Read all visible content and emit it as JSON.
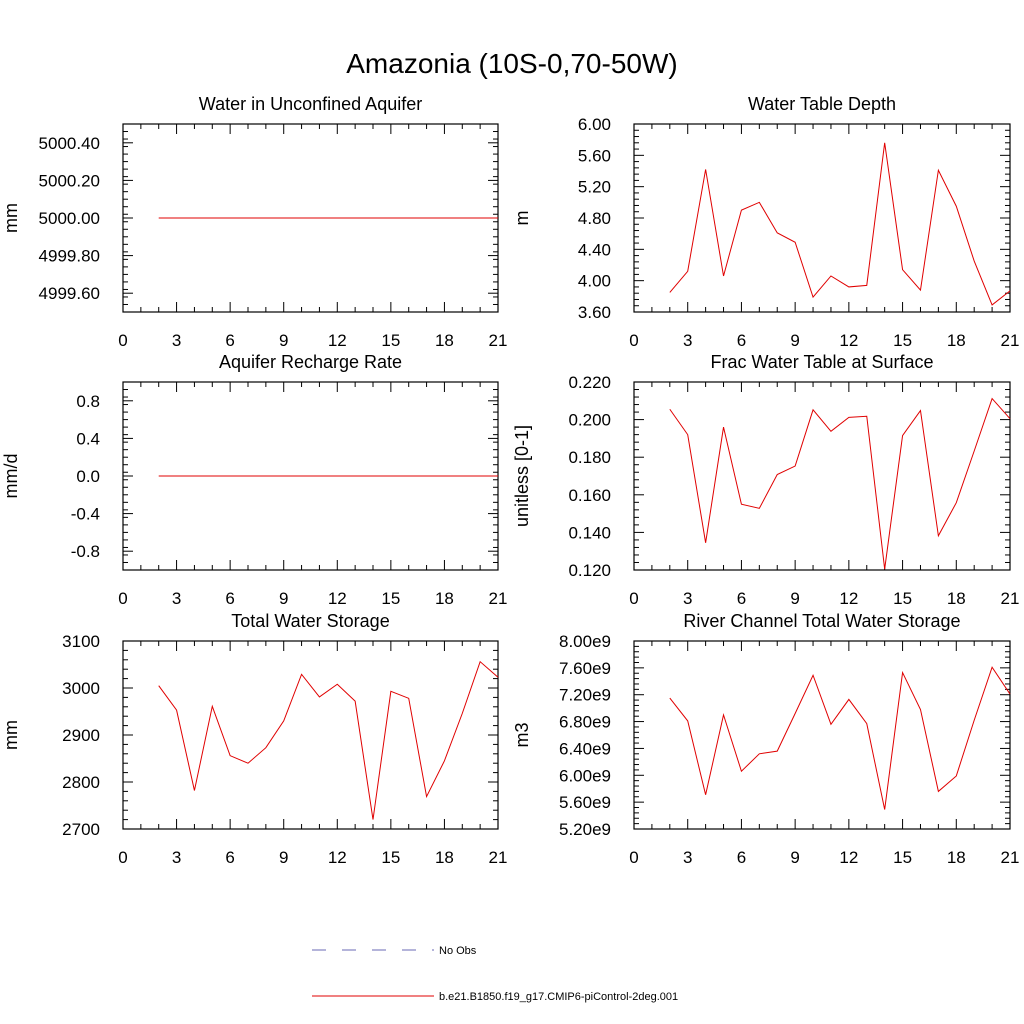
{
  "figure": {
    "title": "Amazonia (10S-0,70-50W)"
  },
  "legend": {
    "entries": [
      {
        "label": "No Obs",
        "style": "dashed",
        "color": "#6a6ab5"
      },
      {
        "label": "b.e21.B1850.f19_g17.CMIP6-piControl-2deg.001",
        "style": "solid",
        "color": "#e00000"
      }
    ]
  },
  "chart_data": [
    {
      "type": "line",
      "title": "Water in Unconfined Aquifer",
      "xlabel": "",
      "ylabel": "mm",
      "xlim": [
        0,
        21
      ],
      "xticks": [
        0,
        3,
        6,
        9,
        12,
        15,
        18,
        21
      ],
      "ylim": [
        4999.5,
        5000.5
      ],
      "yticks": [
        4999.6,
        4999.8,
        5000.0,
        5000.2,
        5000.4
      ],
      "ytick_labels": [
        "4999.60",
        "4999.80",
        "5000.00",
        "5000.20",
        "5000.40"
      ],
      "yminor": 0.04,
      "series": [
        {
          "name": "b.e21.B1850.f19_g17.CMIP6-piControl-2deg.001",
          "color": "#e00000",
          "x": [
            2,
            3,
            4,
            5,
            6,
            7,
            8,
            9,
            10,
            11,
            12,
            13,
            14,
            15,
            16,
            17,
            18,
            19,
            20,
            21
          ],
          "values": [
            5000,
            5000,
            5000,
            5000,
            5000,
            5000,
            5000,
            5000,
            5000,
            5000,
            5000,
            5000,
            5000,
            5000,
            5000,
            5000,
            5000,
            5000,
            5000,
            5000
          ]
        }
      ]
    },
    {
      "type": "line",
      "title": "Water Table Depth",
      "xlabel": "",
      "ylabel": "m",
      "xlim": [
        0,
        21
      ],
      "xticks": [
        0,
        3,
        6,
        9,
        12,
        15,
        18,
        21
      ],
      "ylim": [
        3.6,
        6.0
      ],
      "yticks": [
        3.6,
        4.0,
        4.4,
        4.8,
        5.2,
        5.6,
        6.0
      ],
      "ytick_labels": [
        "3.60",
        "4.00",
        "4.40",
        "4.80",
        "5.20",
        "5.60",
        "6.00"
      ],
      "yminor": 0.08,
      "series": [
        {
          "name": "b.e21.B1850.f19_g17.CMIP6-piControl-2deg.001",
          "color": "#e00000",
          "x": [
            2,
            3,
            4,
            5,
            6,
            7,
            8,
            9,
            10,
            11,
            12,
            13,
            14,
            15,
            16,
            17,
            18,
            19,
            20,
            21
          ],
          "values": [
            3.85,
            4.12,
            5.42,
            4.06,
            4.9,
            5.0,
            4.61,
            4.49,
            3.79,
            4.06,
            3.92,
            3.94,
            5.76,
            4.14,
            3.88,
            5.41,
            4.95,
            4.25,
            3.69,
            3.87
          ]
        }
      ]
    },
    {
      "type": "line",
      "title": "Aquifer Recharge Rate",
      "xlabel": "",
      "ylabel": "mm/d",
      "xlim": [
        0,
        21
      ],
      "xticks": [
        0,
        3,
        6,
        9,
        12,
        15,
        18,
        21
      ],
      "ylim": [
        -1.0,
        1.0
      ],
      "yticks": [
        -0.8,
        -0.4,
        0.0,
        0.4,
        0.8
      ],
      "ytick_labels": [
        "-0.8",
        "-0.4",
        "0.0",
        "0.4",
        "0.8"
      ],
      "yminor": 0.08,
      "series": [
        {
          "name": "b.e21.B1850.f19_g17.CMIP6-piControl-2deg.001",
          "color": "#e00000",
          "x": [
            2,
            3,
            4,
            5,
            6,
            7,
            8,
            9,
            10,
            11,
            12,
            13,
            14,
            15,
            16,
            17,
            18,
            19,
            20,
            21
          ],
          "values": [
            0,
            0,
            0,
            0,
            0,
            0,
            0,
            0,
            0,
            0,
            0,
            0,
            0,
            0,
            0,
            0,
            0,
            0,
            0,
            0
          ]
        }
      ]
    },
    {
      "type": "line",
      "title": "Frac Water Table at Surface",
      "xlabel": "",
      "ylabel": "unitless [0-1]",
      "xlim": [
        0,
        21
      ],
      "xticks": [
        0,
        3,
        6,
        9,
        12,
        15,
        18,
        21
      ],
      "ylim": [
        0.12,
        0.22
      ],
      "yticks": [
        0.12,
        0.14,
        0.16,
        0.18,
        0.2,
        0.22
      ],
      "ytick_labels": [
        "0.120",
        "0.140",
        "0.160",
        "0.180",
        "0.200",
        "0.220"
      ],
      "yminor": 0.004,
      "series": [
        {
          "name": "b.e21.B1850.f19_g17.CMIP6-piControl-2deg.001",
          "color": "#e00000",
          "x": [
            2,
            3,
            4,
            5,
            6,
            7,
            8,
            9,
            10,
            11,
            12,
            13,
            14,
            15,
            16,
            17,
            18,
            19,
            20,
            21
          ],
          "values": [
            0.2055,
            0.192,
            0.1345,
            0.196,
            0.155,
            0.1528,
            0.1708,
            0.1753,
            0.2052,
            0.1938,
            0.2012,
            0.2018,
            0.1205,
            0.1915,
            0.2048,
            0.1382,
            0.1558,
            0.1833,
            0.2112,
            0.2005
          ]
        }
      ]
    },
    {
      "type": "line",
      "title": "Total Water Storage",
      "xlabel": "",
      "ylabel": "mm",
      "xlim": [
        0,
        21
      ],
      "xticks": [
        0,
        3,
        6,
        9,
        12,
        15,
        18,
        21
      ],
      "ylim": [
        2700,
        3100
      ],
      "yticks": [
        2700,
        2800,
        2900,
        3000,
        3100
      ],
      "ytick_labels": [
        "2700",
        "2800",
        "2900",
        "3000",
        "3100"
      ],
      "yminor": 20,
      "series": [
        {
          "name": "b.e21.B1850.f19_g17.CMIP6-piControl-2deg.001",
          "color": "#e00000",
          "x": [
            2,
            3,
            4,
            5,
            6,
            7,
            8,
            9,
            10,
            11,
            12,
            13,
            14,
            15,
            16,
            17,
            18,
            19,
            20,
            21
          ],
          "values": [
            3005,
            2953,
            2782,
            2961,
            2856,
            2840,
            2873,
            2930,
            3029,
            2981,
            3008,
            2972,
            2720,
            2993,
            2978,
            2769,
            2845,
            2946,
            3056,
            3023
          ]
        }
      ]
    },
    {
      "type": "line",
      "title": "River Channel Total Water Storage",
      "xlabel": "",
      "ylabel": "m3",
      "xlim": [
        0,
        21
      ],
      "xticks": [
        0,
        3,
        6,
        9,
        12,
        15,
        18,
        21
      ],
      "ylim": [
        5200000000.0,
        8000000000.0
      ],
      "yticks": [
        5200000000.0,
        5600000000.0,
        6000000000.0,
        6400000000.0,
        6800000000.0,
        7200000000.0,
        7600000000.0,
        8000000000.0
      ],
      "ytick_labels": [
        "5.20e9",
        "5.60e9",
        "6.00e9",
        "6.40e9",
        "6.80e9",
        "7.20e9",
        "7.60e9",
        "8.00e9"
      ],
      "yminor": 80000000.0,
      "series": [
        {
          "name": "b.e21.B1850.f19_g17.CMIP6-piControl-2deg.001",
          "color": "#e00000",
          "x": [
            2,
            3,
            4,
            5,
            6,
            7,
            8,
            9,
            10,
            11,
            12,
            13,
            14,
            15,
            16,
            17,
            18,
            19,
            20,
            21
          ],
          "values": [
            7150000000.0,
            6810000000.0,
            5710000000.0,
            6900000000.0,
            6060000000.0,
            6320000000.0,
            6360000000.0,
            6920000000.0,
            7490000000.0,
            6760000000.0,
            7130000000.0,
            6770000000.0,
            5490000000.0,
            7530000000.0,
            6980000000.0,
            5760000000.0,
            5990000000.0,
            6820000000.0,
            7610000000.0,
            7210000000.0
          ]
        }
      ]
    }
  ]
}
